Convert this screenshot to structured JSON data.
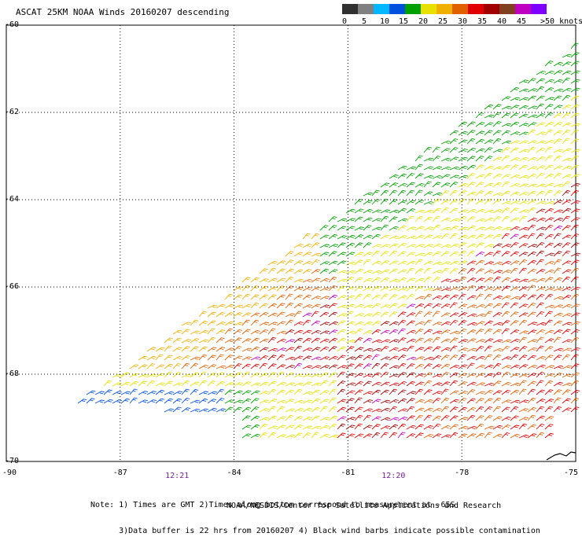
{
  "title": "ASCAT 25KM NOAA Winds 20160207 descending",
  "colorbar": {
    "labels": [
      "0",
      "5",
      "10",
      "15",
      "20",
      "25",
      "30",
      "35",
      "40",
      "45",
      ">50 knots"
    ],
    "colors": [
      "#303030",
      "#808080",
      "#00b8ff",
      "#0050e0",
      "#00a000",
      "#e8e000",
      "#f0b000",
      "#e06000",
      "#e00000",
      "#a00000",
      "#804020",
      "#c000c0",
      "#8000ff"
    ]
  },
  "axes": {
    "x_ticks": [
      "-90",
      "-87",
      "-84",
      "-81",
      "-78",
      "-75"
    ],
    "y_ticks": [
      "-60",
      "-62",
      "-64",
      "-66",
      "-68",
      "-70"
    ]
  },
  "time_labels": [
    {
      "text": "12:21",
      "lon": -85.5
    },
    {
      "text": "12:20",
      "lon": -79.8
    }
  ],
  "notes": [
    "Note: 1) Times are GMT 2)Times along bottom correspond to measurement at -65S",
    "      3)Data buffer is 22 hrs from 20160207 4) Black wind barbs indicate possible contamination"
  ],
  "credit": "NOAA/NESDIS/Center for Satellite Applications and Research"
}
